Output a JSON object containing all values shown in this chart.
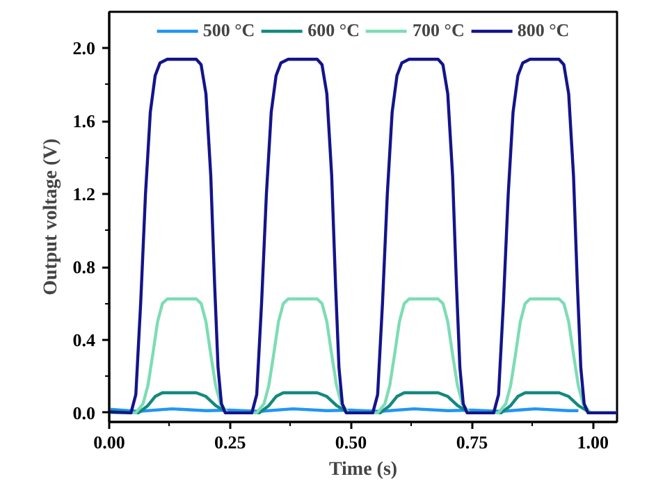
{
  "chart_data": {
    "type": "line",
    "xlabel": "Time (s)",
    "ylabel": "Output voltage (V)",
    "xlim": [
      0,
      1.05
    ],
    "ylim": [
      -0.05,
      2.2
    ],
    "xticks": [
      {
        "value": 0,
        "label": "0.00"
      },
      {
        "value": 0.125,
        "label": null
      },
      {
        "value": 0.25,
        "label": "0.25"
      },
      {
        "value": 0.375,
        "label": null
      },
      {
        "value": 0.5,
        "label": "0.50"
      },
      {
        "value": 0.625,
        "label": null
      },
      {
        "value": 0.75,
        "label": "0.75"
      },
      {
        "value": 0.875,
        "label": null
      },
      {
        "value": 1,
        "label": "1.00"
      }
    ],
    "yticks": [
      {
        "value": 0,
        "label": "0.0"
      },
      {
        "value": 0.2,
        "label": null
      },
      {
        "value": 0.4,
        "label": "0.4"
      },
      {
        "value": 0.6,
        "label": null
      },
      {
        "value": 0.8,
        "label": "0.8"
      },
      {
        "value": 1.0,
        "label": null
      },
      {
        "value": 1.2,
        "label": "1.2"
      },
      {
        "value": 1.4,
        "label": null
      },
      {
        "value": 1.6,
        "label": "1.6"
      },
      {
        "value": 1.8,
        "label": null
      },
      {
        "value": 2.0,
        "label": "2.0"
      }
    ],
    "grid": false,
    "legend": "top",
    "line_style": "solid",
    "marker": "none",
    "series": [
      {
        "name": "500 °C",
        "color": "#2196f3",
        "x": [
          0,
          0.06,
          0.13,
          0.2,
          0.25,
          0.31,
          0.38,
          0.45,
          0.5,
          0.56,
          0.63,
          0.7,
          0.75,
          0.81,
          0.88,
          0.95,
          0.97
        ],
        "values": [
          0.02,
          0.008,
          0.022,
          0.012,
          0.015,
          0.008,
          0.022,
          0.012,
          0.015,
          0.008,
          0.022,
          0.012,
          0.015,
          0.008,
          0.022,
          0.012,
          0.012
        ]
      },
      {
        "name": "600 °C",
        "color": "#13897f",
        "x": [
          0,
          0.06,
          0.08,
          0.095,
          0.11,
          0.18,
          0.2,
          0.22,
          0.245,
          0.31,
          0.33,
          0.345,
          0.36,
          0.43,
          0.45,
          0.47,
          0.495,
          0.56,
          0.58,
          0.595,
          0.61,
          0.68,
          0.7,
          0.72,
          0.745,
          0.81,
          0.83,
          0.845,
          0.86,
          0.93,
          0.95,
          0.97,
          0.995,
          1.05
        ],
        "values": [
          0.01,
          0,
          0.04,
          0.09,
          0.11,
          0.11,
          0.09,
          0.04,
          0,
          0,
          0.04,
          0.09,
          0.11,
          0.11,
          0.09,
          0.04,
          0,
          0,
          0.04,
          0.09,
          0.11,
          0.11,
          0.09,
          0.04,
          0,
          0,
          0.04,
          0.09,
          0.11,
          0.11,
          0.09,
          0.04,
          0,
          0
        ]
      },
      {
        "name": "700 °C",
        "color": "#7ddcb5",
        "x": [
          0,
          0.055,
          0.07,
          0.08,
          0.09,
          0.1,
          0.11,
          0.12,
          0.18,
          0.19,
          0.2,
          0.21,
          0.22,
          0.23,
          0.245,
          0.305,
          0.32,
          0.33,
          0.34,
          0.35,
          0.36,
          0.37,
          0.43,
          0.44,
          0.45,
          0.46,
          0.47,
          0.48,
          0.495,
          0.555,
          0.57,
          0.58,
          0.59,
          0.6,
          0.61,
          0.62,
          0.68,
          0.69,
          0.7,
          0.71,
          0.72,
          0.73,
          0.745,
          0.805,
          0.82,
          0.83,
          0.84,
          0.85,
          0.86,
          0.87,
          0.93,
          0.94,
          0.95,
          0.96,
          0.97,
          0.98,
          0.995,
          1.05
        ],
        "values": [
          0,
          0,
          0.05,
          0.15,
          0.32,
          0.5,
          0.6,
          0.625,
          0.625,
          0.6,
          0.5,
          0.32,
          0.15,
          0.05,
          0,
          0,
          0.05,
          0.15,
          0.32,
          0.5,
          0.6,
          0.625,
          0.625,
          0.6,
          0.5,
          0.32,
          0.15,
          0.05,
          0,
          0,
          0.05,
          0.15,
          0.32,
          0.5,
          0.6,
          0.625,
          0.625,
          0.6,
          0.5,
          0.32,
          0.15,
          0.05,
          0,
          0,
          0.05,
          0.15,
          0.32,
          0.5,
          0.6,
          0.625,
          0.625,
          0.6,
          0.5,
          0.32,
          0.15,
          0.05,
          0,
          0
        ]
      },
      {
        "name": "800 °C",
        "color": "#14148c",
        "x": [
          0,
          0.045,
          0.055,
          0.065,
          0.075,
          0.085,
          0.095,
          0.105,
          0.12,
          0.18,
          0.19,
          0.2,
          0.21,
          0.218,
          0.225,
          0.232,
          0.24,
          0.295,
          0.305,
          0.315,
          0.325,
          0.335,
          0.345,
          0.355,
          0.37,
          0.43,
          0.44,
          0.45,
          0.46,
          0.468,
          0.475,
          0.482,
          0.49,
          0.545,
          0.555,
          0.565,
          0.575,
          0.585,
          0.595,
          0.605,
          0.62,
          0.68,
          0.69,
          0.7,
          0.71,
          0.718,
          0.725,
          0.732,
          0.74,
          0.795,
          0.805,
          0.815,
          0.825,
          0.835,
          0.845,
          0.855,
          0.87,
          0.93,
          0.94,
          0.95,
          0.96,
          0.968,
          0.975,
          0.982,
          0.99,
          1.05
        ],
        "values": [
          0.005,
          0,
          0.1,
          0.6,
          1.2,
          1.65,
          1.85,
          1.92,
          1.94,
          1.94,
          1.91,
          1.75,
          1.3,
          0.7,
          0.25,
          0.05,
          0,
          0,
          0.1,
          0.6,
          1.2,
          1.65,
          1.85,
          1.92,
          1.94,
          1.94,
          1.91,
          1.75,
          1.3,
          0.7,
          0.25,
          0.05,
          0,
          0,
          0.1,
          0.6,
          1.2,
          1.65,
          1.85,
          1.92,
          1.94,
          1.94,
          1.91,
          1.75,
          1.3,
          0.7,
          0.25,
          0.05,
          0,
          0,
          0.1,
          0.6,
          1.2,
          1.65,
          1.85,
          1.92,
          1.94,
          1.94,
          1.91,
          1.75,
          1.3,
          0.7,
          0.25,
          0.05,
          0,
          0
        ]
      }
    ]
  }
}
